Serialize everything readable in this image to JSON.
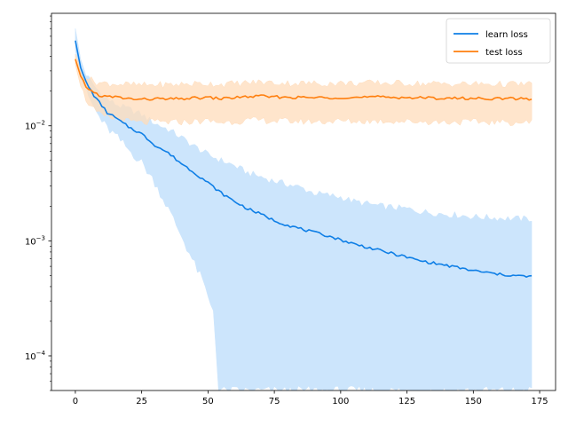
{
  "chart_data": {
    "type": "line",
    "title": "",
    "xlabel": "",
    "ylabel": "",
    "xlim": [
      -9,
      181
    ],
    "ylim": [
      5e-05,
      0.095
    ],
    "yscale": "log",
    "grid": false,
    "legend_position": "top-right",
    "x_ticks": [
      0,
      25,
      50,
      75,
      100,
      125,
      150,
      175
    ],
    "x_tick_labels": [
      "0",
      "25",
      "50",
      "75",
      "100",
      "125",
      "150",
      "175"
    ],
    "y_ticks": [
      0.0001,
      0.001,
      0.01
    ],
    "y_tick_labels": [
      {
        "base": "10",
        "exp": "−4"
      },
      {
        "base": "10",
        "exp": "−3"
      },
      {
        "base": "10",
        "exp": "−2"
      }
    ],
    "series": [
      {
        "name": "learn loss",
        "color": "#0f7fe6",
        "band_color": "#cce5fc",
        "points": [
          [
            0,
            0.055
          ],
          [
            2,
            0.032
          ],
          [
            4,
            0.024
          ],
          [
            6,
            0.02
          ],
          [
            8,
            0.017
          ],
          [
            10,
            0.015
          ],
          [
            12,
            0.013
          ],
          [
            15,
            0.0118
          ],
          [
            18,
            0.0105
          ],
          [
            20,
            0.0098
          ],
          [
            25,
            0.0085
          ],
          [
            30,
            0.0068
          ],
          [
            35,
            0.0058
          ],
          [
            40,
            0.0047
          ],
          [
            45,
            0.0039
          ],
          [
            50,
            0.0032
          ],
          [
            55,
            0.0026
          ],
          [
            60,
            0.0022
          ],
          [
            65,
            0.0019
          ],
          [
            70,
            0.0017
          ],
          [
            75,
            0.0015
          ],
          [
            80,
            0.00137
          ],
          [
            85,
            0.00127
          ],
          [
            90,
            0.00118
          ],
          [
            95,
            0.00111
          ],
          [
            100,
            0.00102
          ],
          [
            105,
            0.00094
          ],
          [
            110,
            0.00088
          ],
          [
            115,
            0.00082
          ],
          [
            120,
            0.00077
          ],
          [
            125,
            0.00072
          ],
          [
            130,
            0.00067
          ],
          [
            135,
            0.00064
          ],
          [
            140,
            0.00061
          ],
          [
            145,
            0.00058
          ],
          [
            150,
            0.00055
          ],
          [
            155,
            0.00053
          ],
          [
            160,
            0.00051
          ],
          [
            165,
            0.0005
          ],
          [
            170,
            0.00049
          ],
          [
            172,
            0.00049
          ]
        ],
        "upper": [
          [
            0,
            0.07
          ],
          [
            2,
            0.038
          ],
          [
            4,
            0.028
          ],
          [
            6,
            0.024
          ],
          [
            8,
            0.021
          ],
          [
            10,
            0.019
          ],
          [
            12,
            0.017
          ],
          [
            15,
            0.0155
          ],
          [
            18,
            0.0145
          ],
          [
            20,
            0.014
          ],
          [
            25,
            0.0125
          ],
          [
            30,
            0.0105
          ],
          [
            35,
            0.0093
          ],
          [
            40,
            0.0079
          ],
          [
            45,
            0.0066
          ],
          [
            50,
            0.0056
          ],
          [
            55,
            0.005
          ],
          [
            60,
            0.0045
          ],
          [
            65,
            0.0039
          ],
          [
            70,
            0.0036
          ],
          [
            75,
            0.0033
          ],
          [
            80,
            0.0031
          ],
          [
            85,
            0.0029
          ],
          [
            90,
            0.0026
          ],
          [
            95,
            0.0025
          ],
          [
            100,
            0.0024
          ],
          [
            105,
            0.0022
          ],
          [
            110,
            0.0021
          ],
          [
            115,
            0.002
          ],
          [
            120,
            0.00195
          ],
          [
            125,
            0.0019
          ],
          [
            130,
            0.0018
          ],
          [
            135,
            0.00175
          ],
          [
            140,
            0.0017
          ],
          [
            145,
            0.00167
          ],
          [
            150,
            0.00162
          ],
          [
            155,
            0.0016
          ],
          [
            160,
            0.00158
          ],
          [
            165,
            0.00156
          ],
          [
            170,
            0.00155
          ],
          [
            172,
            0.00155
          ]
        ],
        "lower": [
          [
            0,
            0.045
          ],
          [
            2,
            0.027
          ],
          [
            4,
            0.02
          ],
          [
            6,
            0.016
          ],
          [
            8,
            0.013
          ],
          [
            10,
            0.011
          ],
          [
            12,
            0.0095
          ],
          [
            15,
            0.0083
          ],
          [
            18,
            0.007
          ],
          [
            20,
            0.0062
          ],
          [
            25,
            0.0048
          ],
          [
            30,
            0.0032
          ],
          [
            35,
            0.0019
          ],
          [
            40,
            0.0011
          ],
          [
            45,
            0.00062
          ],
          [
            48,
            0.00045
          ],
          [
            50,
            0.00032
          ],
          [
            52,
            0.00025
          ],
          [
            53,
            0.00012
          ],
          [
            54,
            5e-05
          ],
          [
            172,
            5e-05
          ]
        ]
      },
      {
        "name": "test loss",
        "color": "#ff7f0e",
        "band_color": "#ffdcbb",
        "points": [
          [
            0,
            0.038
          ],
          [
            2,
            0.027
          ],
          [
            4,
            0.022
          ],
          [
            6,
            0.02
          ],
          [
            8,
            0.019
          ],
          [
            10,
            0.018
          ],
          [
            15,
            0.0178
          ],
          [
            20,
            0.0172
          ],
          [
            25,
            0.0169
          ],
          [
            30,
            0.0172
          ],
          [
            35,
            0.017
          ],
          [
            40,
            0.0172
          ],
          [
            45,
            0.0174
          ],
          [
            50,
            0.0176
          ],
          [
            55,
            0.0172
          ],
          [
            60,
            0.0176
          ],
          [
            65,
            0.0179
          ],
          [
            70,
            0.0181
          ],
          [
            75,
            0.0178
          ],
          [
            80,
            0.0177
          ],
          [
            85,
            0.0176
          ],
          [
            90,
            0.0176
          ],
          [
            95,
            0.0175
          ],
          [
            100,
            0.0177
          ],
          [
            105,
            0.0176
          ],
          [
            110,
            0.0177
          ],
          [
            115,
            0.0178
          ],
          [
            120,
            0.0177
          ],
          [
            125,
            0.0176
          ],
          [
            130,
            0.0175
          ],
          [
            135,
            0.0174
          ],
          [
            140,
            0.0174
          ],
          [
            145,
            0.0173
          ],
          [
            150,
            0.0173
          ],
          [
            155,
            0.0173
          ],
          [
            160,
            0.0172
          ],
          [
            165,
            0.0172
          ],
          [
            170,
            0.0172
          ],
          [
            172,
            0.0172
          ]
        ],
        "upper": [
          [
            0,
            0.042
          ],
          [
            2,
            0.032
          ],
          [
            4,
            0.027
          ],
          [
            6,
            0.025
          ],
          [
            8,
            0.024
          ],
          [
            10,
            0.0235
          ],
          [
            15,
            0.0232
          ],
          [
            20,
            0.0228
          ],
          [
            25,
            0.0225
          ],
          [
            30,
            0.0228
          ],
          [
            35,
            0.0227
          ],
          [
            40,
            0.023
          ],
          [
            45,
            0.0232
          ],
          [
            50,
            0.0233
          ],
          [
            55,
            0.023
          ],
          [
            60,
            0.0233
          ],
          [
            65,
            0.0237
          ],
          [
            70,
            0.024
          ],
          [
            75,
            0.0236
          ],
          [
            80,
            0.0235
          ],
          [
            85,
            0.0234
          ],
          [
            90,
            0.0234
          ],
          [
            95,
            0.0233
          ],
          [
            100,
            0.0235
          ],
          [
            105,
            0.0234
          ],
          [
            110,
            0.0235
          ],
          [
            115,
            0.0236
          ],
          [
            120,
            0.0235
          ],
          [
            125,
            0.0234
          ],
          [
            130,
            0.0233
          ],
          [
            135,
            0.0232
          ],
          [
            140,
            0.0232
          ],
          [
            145,
            0.0231
          ],
          [
            150,
            0.0231
          ],
          [
            155,
            0.0231
          ],
          [
            160,
            0.023
          ],
          [
            165,
            0.023
          ],
          [
            170,
            0.023
          ],
          [
            172,
            0.023
          ]
        ],
        "lower": [
          [
            0,
            0.034
          ],
          [
            2,
            0.022
          ],
          [
            4,
            0.017
          ],
          [
            6,
            0.0145
          ],
          [
            8,
            0.013
          ],
          [
            10,
            0.0122
          ],
          [
            15,
            0.0115
          ],
          [
            20,
            0.011
          ],
          [
            25,
            0.0106
          ],
          [
            30,
            0.0108
          ],
          [
            35,
            0.0107
          ],
          [
            40,
            0.0108
          ],
          [
            45,
            0.0109
          ],
          [
            50,
            0.011
          ],
          [
            55,
            0.0107
          ],
          [
            60,
            0.0109
          ],
          [
            65,
            0.0111
          ],
          [
            70,
            0.0112
          ],
          [
            75,
            0.011
          ],
          [
            80,
            0.011
          ],
          [
            85,
            0.0109
          ],
          [
            90,
            0.0109
          ],
          [
            95,
            0.0109
          ],
          [
            100,
            0.011
          ],
          [
            105,
            0.0109
          ],
          [
            110,
            0.011
          ],
          [
            115,
            0.011
          ],
          [
            120,
            0.011
          ],
          [
            125,
            0.0109
          ],
          [
            130,
            0.0109
          ],
          [
            135,
            0.0108
          ],
          [
            140,
            0.0108
          ],
          [
            145,
            0.0108
          ],
          [
            150,
            0.0108
          ],
          [
            155,
            0.0108
          ],
          [
            160,
            0.0107
          ],
          [
            165,
            0.0107
          ],
          [
            170,
            0.0107
          ],
          [
            172,
            0.0107
          ]
        ]
      }
    ]
  }
}
